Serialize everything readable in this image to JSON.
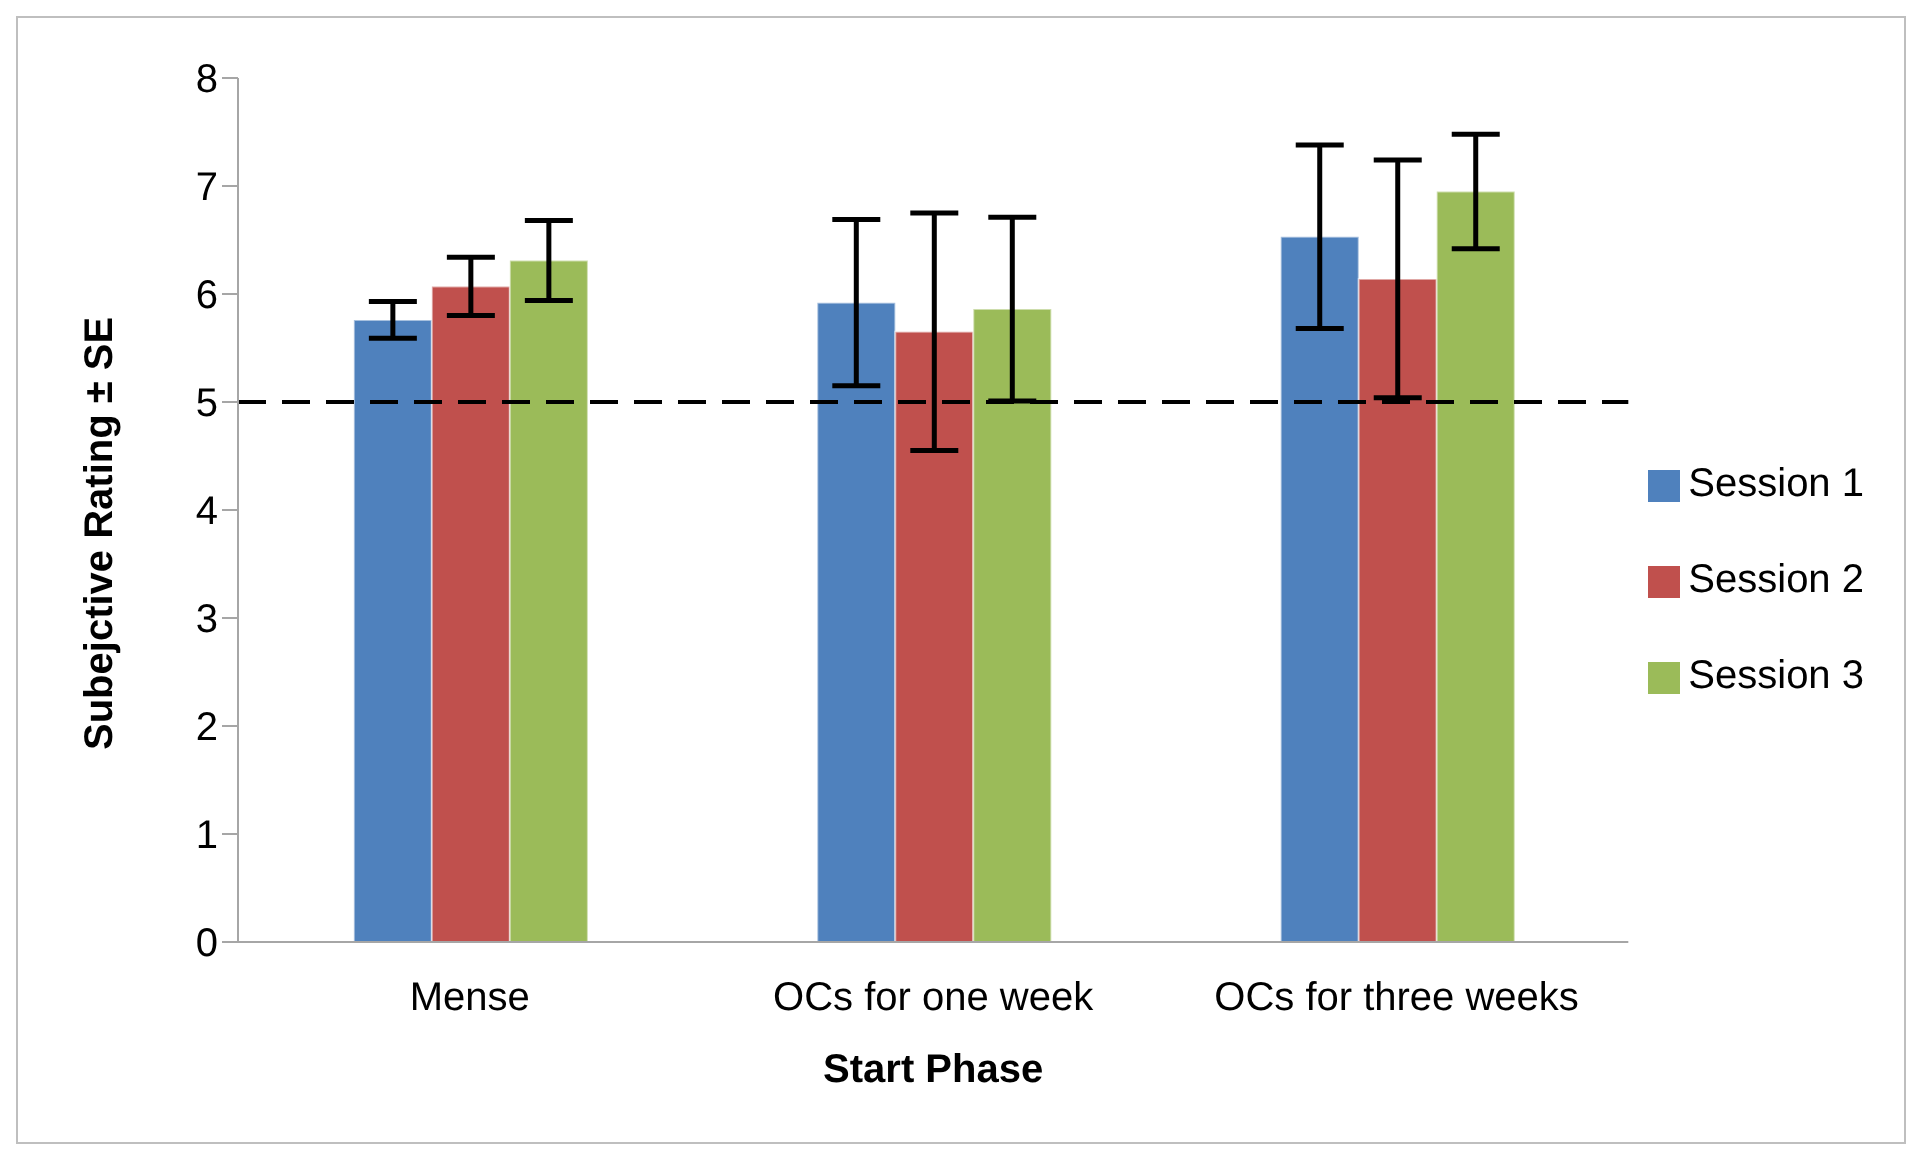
{
  "chart_data": {
    "type": "bar",
    "xlabel": "Start Phase",
    "ylabel": "Subejctive Rating ± SE",
    "categories": [
      "Mense",
      "OCs for one week",
      "OCs for three weeks"
    ],
    "series": [
      {
        "name": "Session 1",
        "color": "#4f81bd",
        "values": [
          5.76,
          5.92,
          6.53
        ],
        "errors": [
          0.17,
          0.77,
          0.85
        ]
      },
      {
        "name": "Session 2",
        "color": "#c0504d",
        "values": [
          6.07,
          5.65,
          6.14
        ],
        "errors": [
          0.27,
          1.1,
          1.1
        ]
      },
      {
        "name": "Session 3",
        "color": "#9bbb59",
        "values": [
          6.31,
          5.86,
          6.95
        ],
        "errors": [
          0.37,
          0.85,
          0.53
        ]
      }
    ],
    "ylim": [
      0,
      8
    ],
    "yticks": [
      0,
      1,
      2,
      3,
      4,
      5,
      6,
      7,
      8
    ],
    "grid": false,
    "legend": "right",
    "ref_lines": [
      {
        "axis": "y",
        "value": 5,
        "color": "#000000",
        "line_style": "dashed"
      }
    ]
  }
}
